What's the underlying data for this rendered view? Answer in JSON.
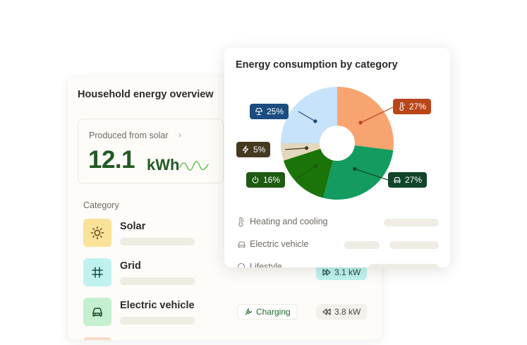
{
  "overview": {
    "title": "Household energy overview",
    "solar": {
      "label": "Produced from solar",
      "chevron": "›",
      "value": "12.1",
      "unit": "kWh"
    },
    "category_heading": "Category",
    "categories": [
      {
        "name": "Solar",
        "icon": "sun-icon",
        "color": "#fbe29a"
      },
      {
        "name": "Grid",
        "icon": "grid-icon",
        "color": "#bff2ee",
        "pill": {
          "icon": "fast-forward-icon",
          "text": "3.1 kW"
        }
      },
      {
        "name": "Electric vehicle",
        "icon": "car-icon",
        "color": "#c4f0d0",
        "status": {
          "icon": "plug-icon",
          "text": "Charging"
        },
        "pill": {
          "icon": "rewind-icon",
          "text": "3.8 kW"
        }
      }
    ]
  },
  "consumption": {
    "title": "Energy consumption by category",
    "chart_data": {
      "type": "pie",
      "title": "Energy consumption by category",
      "slices": [
        {
          "icon": "thermometer-icon",
          "label": "27%",
          "value": 27,
          "color": "#f8a470",
          "tag_color": "#b9461a"
        },
        {
          "icon": "car-icon",
          "label": "27%",
          "value": 27,
          "color": "#139b60",
          "tag_color": "#11452a"
        },
        {
          "icon": "power-icon",
          "label": "16%",
          "value": 16,
          "color": "#1a7408",
          "tag_color": "#1e5a12"
        },
        {
          "icon": "lightning-icon",
          "label": "5%",
          "value": 5,
          "color": "#e2d8bd",
          "tag_color": "#45391f"
        },
        {
          "icon": "lamp-icon",
          "label": "25%",
          "value": 25,
          "color": "#c7e2fb",
          "tag_color": "#1b4d80"
        }
      ],
      "hole": true
    },
    "legend": [
      {
        "icon": "thermometer-icon",
        "label": "Heating and cooling"
      },
      {
        "icon": "car-icon",
        "label": "Electric vehicle"
      },
      {
        "icon": "lifestyle-icon",
        "label": "Lifestyle"
      }
    ]
  }
}
